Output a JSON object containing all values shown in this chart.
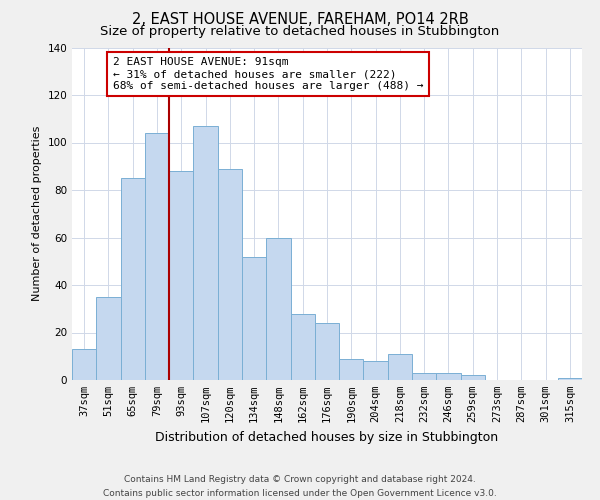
{
  "title": "2, EAST HOUSE AVENUE, FAREHAM, PO14 2RB",
  "subtitle": "Size of property relative to detached houses in Stubbington",
  "xlabel": "Distribution of detached houses by size in Stubbington",
  "ylabel": "Number of detached properties",
  "bin_labels": [
    "37sqm",
    "51sqm",
    "65sqm",
    "79sqm",
    "93sqm",
    "107sqm",
    "120sqm",
    "134sqm",
    "148sqm",
    "162sqm",
    "176sqm",
    "190sqm",
    "204sqm",
    "218sqm",
    "232sqm",
    "246sqm",
    "259sqm",
    "273sqm",
    "287sqm",
    "301sqm",
    "315sqm"
  ],
  "bar_heights": [
    13,
    35,
    85,
    104,
    88,
    107,
    89,
    52,
    60,
    28,
    24,
    9,
    8,
    11,
    3,
    3,
    2,
    0,
    0,
    0,
    1
  ],
  "bar_color": "#c5d8ef",
  "bar_edge_color": "#7aafd4",
  "vline_x_index": 4,
  "vline_color": "#aa0000",
  "annotation_text": "2 EAST HOUSE AVENUE: 91sqm\n← 31% of detached houses are smaller (222)\n68% of semi-detached houses are larger (488) →",
  "annotation_box_color": "white",
  "annotation_box_edge_color": "#cc0000",
  "ylim": [
    0,
    140
  ],
  "yticks": [
    0,
    20,
    40,
    60,
    80,
    100,
    120,
    140
  ],
  "footer_text": "Contains HM Land Registry data © Crown copyright and database right 2024.\nContains public sector information licensed under the Open Government Licence v3.0.",
  "background_color": "#f0f0f0",
  "plot_background_color": "white",
  "title_fontsize": 10.5,
  "subtitle_fontsize": 9.5,
  "xlabel_fontsize": 9,
  "ylabel_fontsize": 8,
  "tick_fontsize": 7.5,
  "annotation_fontsize": 8,
  "footer_fontsize": 6.5,
  "grid_color": "#d0d8e8"
}
